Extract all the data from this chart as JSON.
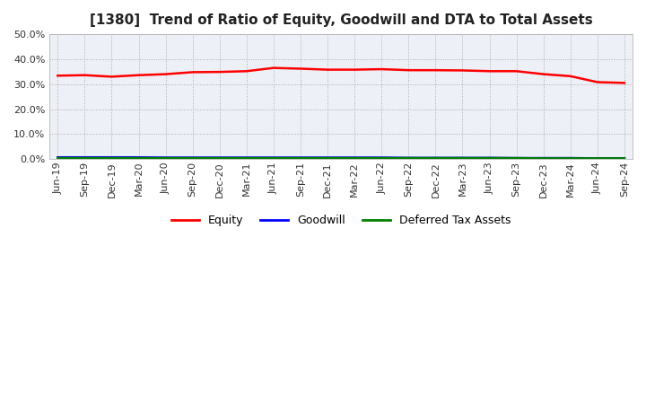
{
  "title": "[1380]  Trend of Ratio of Equity, Goodwill and DTA to Total Assets",
  "x_labels": [
    "Jun-19",
    "Sep-19",
    "Dec-19",
    "Mar-20",
    "Jun-20",
    "Sep-20",
    "Dec-20",
    "Mar-21",
    "Jun-21",
    "Sep-21",
    "Dec-21",
    "Mar-22",
    "Jun-22",
    "Sep-22",
    "Dec-22",
    "Mar-23",
    "Jun-23",
    "Sep-23",
    "Dec-23",
    "Mar-24",
    "Jun-24",
    "Sep-24"
  ],
  "equity": [
    0.334,
    0.336,
    0.33,
    0.336,
    0.34,
    0.348,
    0.349,
    0.352,
    0.365,
    0.362,
    0.358,
    0.358,
    0.36,
    0.356,
    0.356,
    0.355,
    0.352,
    0.352,
    0.34,
    0.332,
    0.308,
    0.305
  ],
  "goodwill": [
    0.007,
    0.007,
    0.007,
    0.007,
    0.006,
    0.006,
    0.006,
    0.006,
    0.006,
    0.006,
    0.006,
    0.006,
    0.006,
    0.005,
    0.005,
    0.005,
    0.005,
    0.004,
    0.004,
    0.004,
    0.003,
    0.003
  ],
  "dta": [
    0.004,
    0.004,
    0.004,
    0.004,
    0.004,
    0.004,
    0.004,
    0.004,
    0.004,
    0.004,
    0.004,
    0.004,
    0.004,
    0.004,
    0.004,
    0.004,
    0.004,
    0.004,
    0.003,
    0.003,
    0.003,
    0.003
  ],
  "equity_color": "#ff0000",
  "goodwill_color": "#0000ff",
  "dta_color": "#008000",
  "ylim": [
    0.0,
    0.5
  ],
  "yticks": [
    0.0,
    0.1,
    0.2,
    0.3,
    0.4,
    0.5
  ],
  "bg_color": "#ffffff",
  "plot_bg_color": "#eef0f8",
  "grid_color": "#aaaaaa",
  "title_fontsize": 11,
  "tick_fontsize": 8,
  "legend_labels": [
    "Equity",
    "Goodwill",
    "Deferred Tax Assets"
  ]
}
